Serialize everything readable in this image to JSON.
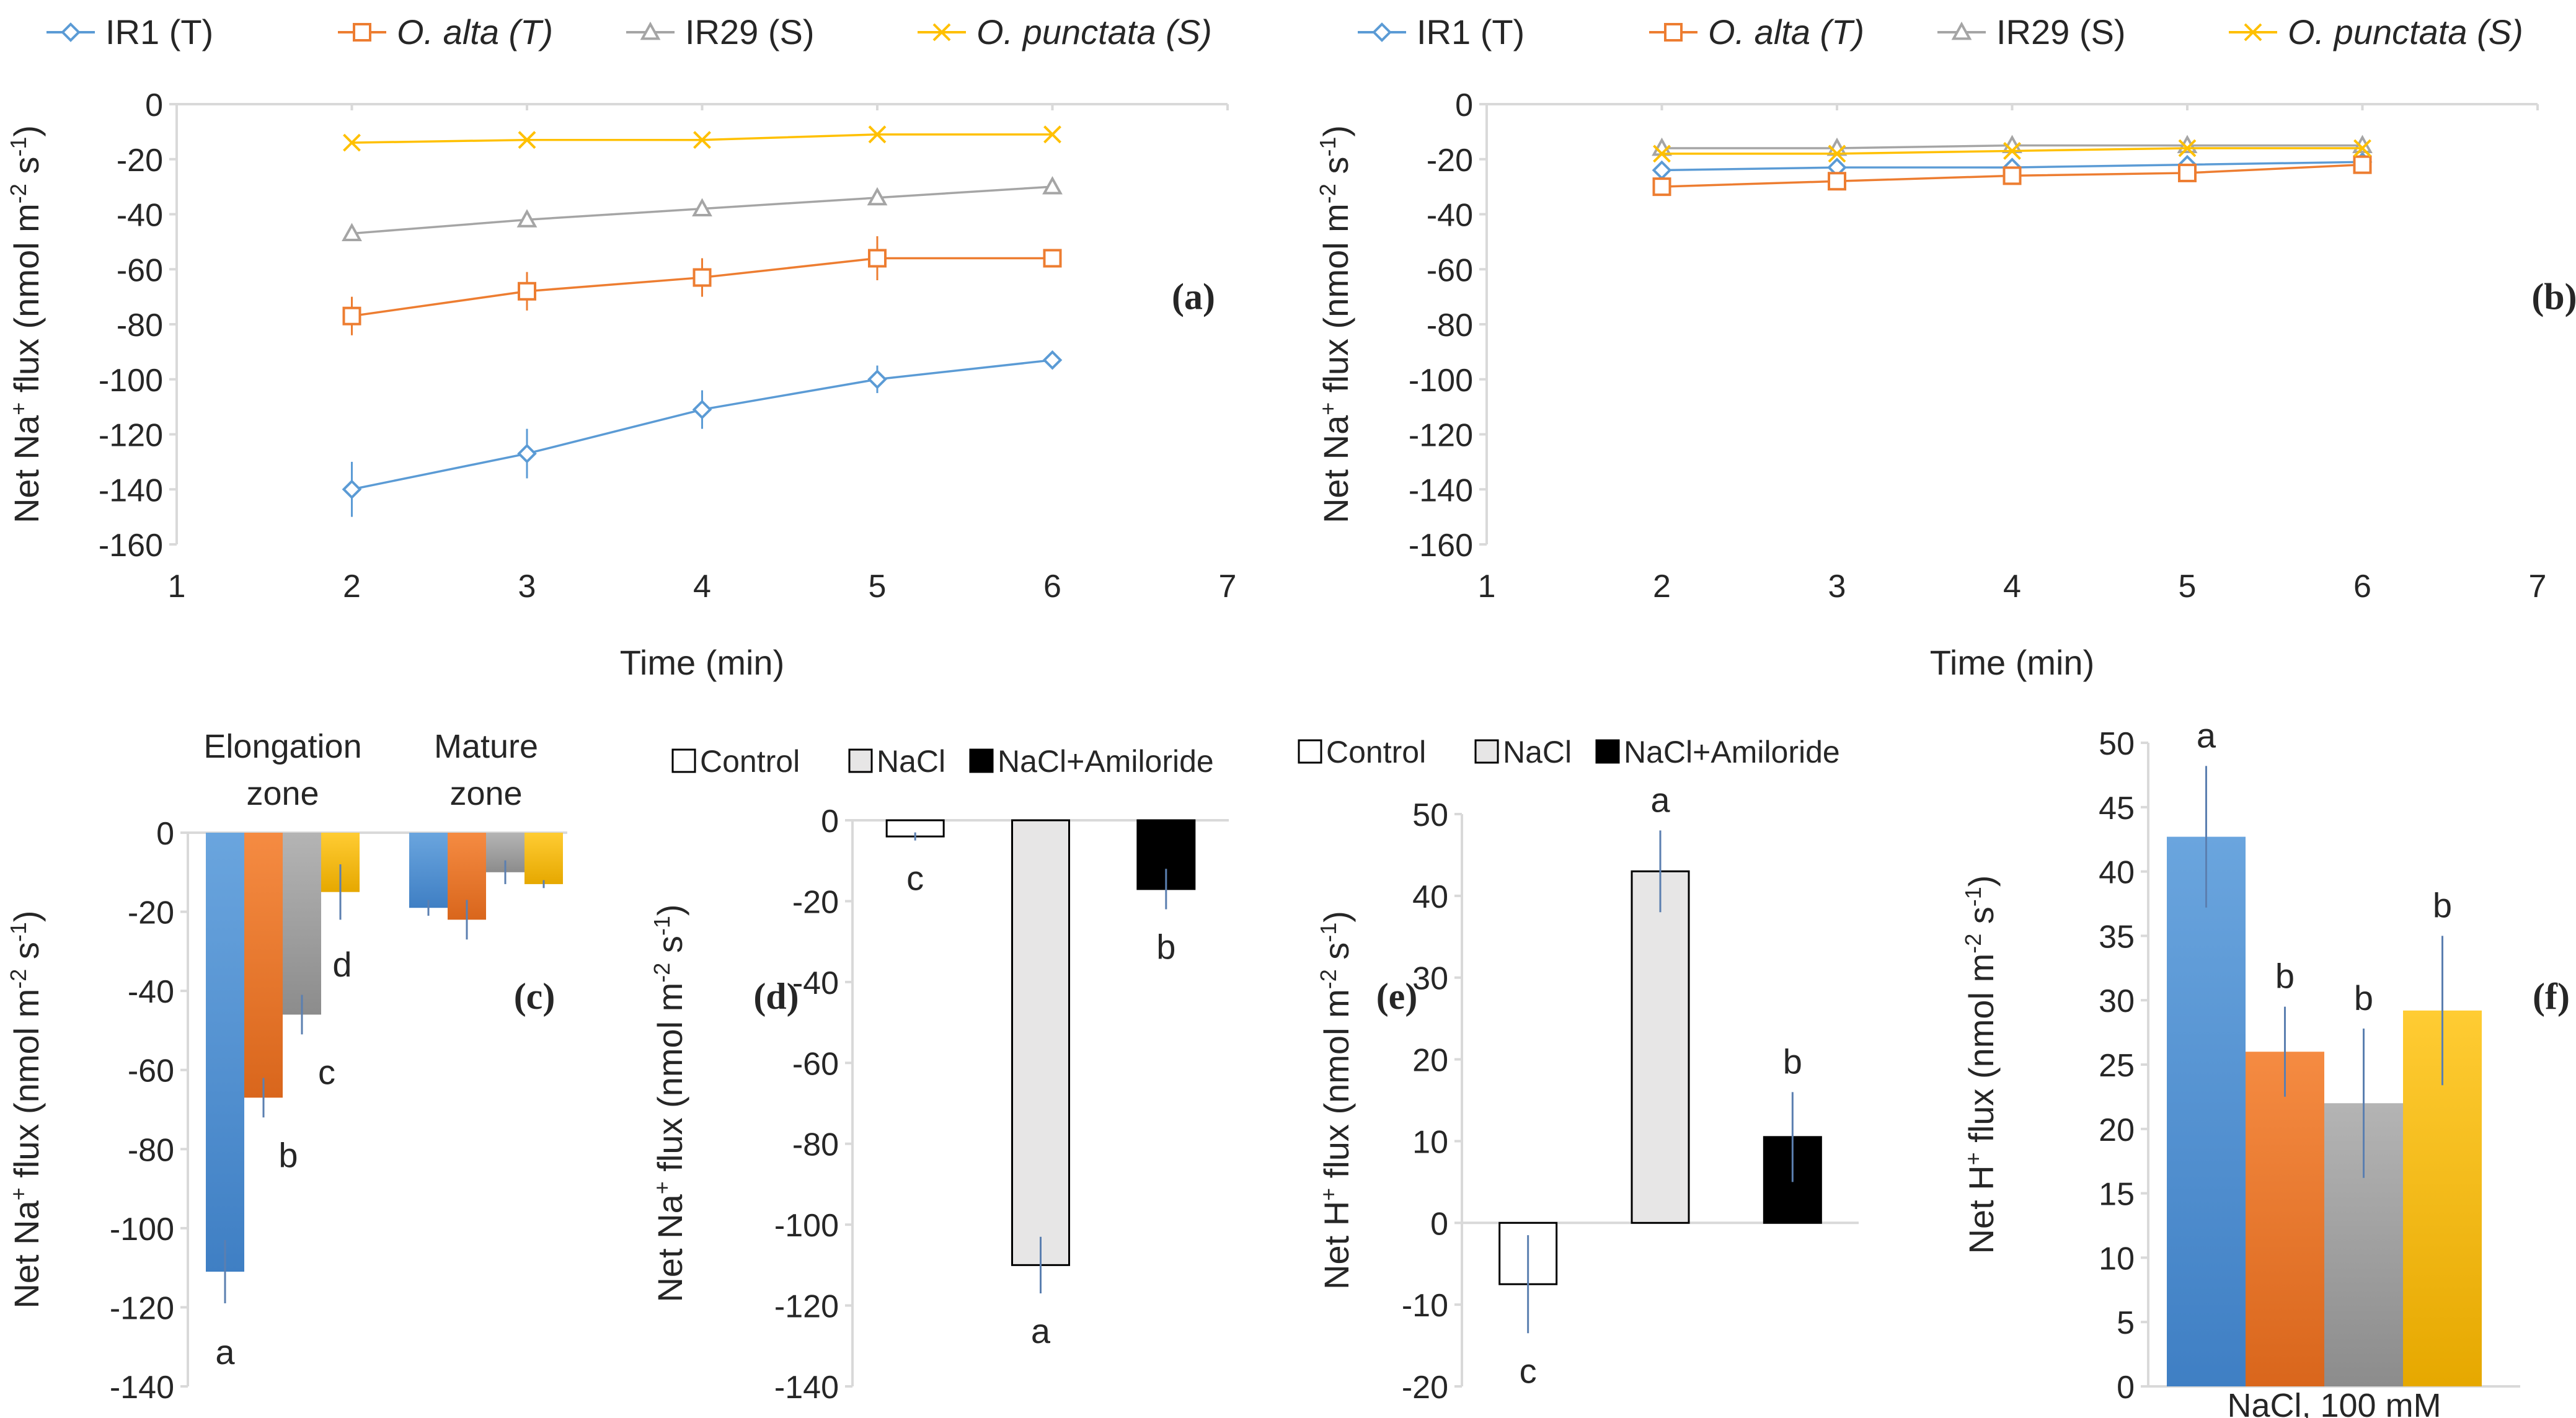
{
  "chart_data": [
    {
      "panel": "(a)",
      "type": "line",
      "xlabel": "Time (min)",
      "ylabel": "Net Na+ flux (nmol m-2 s-1)",
      "ylabel_parts": [
        "Net Na",
        "+",
        " flux (nmol m",
        "-2",
        " s",
        "-1",
        ")"
      ],
      "xlim": [
        1,
        7
      ],
      "ylim": [
        -160,
        0
      ],
      "xticks": [
        1,
        2,
        3,
        4,
        5,
        6,
        7
      ],
      "yticks": [
        0,
        -20,
        -40,
        -60,
        -80,
        -100,
        -120,
        -140,
        -160
      ],
      "x": [
        2,
        3,
        4,
        5,
        6
      ],
      "legend": [
        {
          "name": "IR1 (T)",
          "italic": false
        },
        {
          "name": "O. alta (T)",
          "italic": true
        },
        {
          "name": "IR29 (S)",
          "italic": false
        },
        {
          "name": "O. punctata (S)",
          "italic": true
        }
      ],
      "series": [
        {
          "name": "IR1 (T)",
          "color": "#5b9bd5",
          "marker": "diamond",
          "values": [
            -140,
            -127,
            -111,
            -100,
            -93
          ],
          "errors": [
            10,
            9,
            7,
            5,
            0
          ]
        },
        {
          "name": "O. alta (T)",
          "color": "#ed7d31",
          "marker": "square",
          "values": [
            -77,
            -68,
            -63,
            -56,
            -56
          ],
          "errors": [
            7,
            7,
            7,
            8,
            0
          ]
        },
        {
          "name": "IR29 (S)",
          "color": "#a5a5a5",
          "marker": "triangle",
          "values": [
            -47,
            -42,
            -38,
            -34,
            -30
          ],
          "errors": [
            0,
            0,
            0,
            0,
            0
          ]
        },
        {
          "name": "O. punctata (S)",
          "color": "#ffc000",
          "marker": "x",
          "values": [
            -14,
            -13,
            -13,
            -11,
            -11
          ],
          "errors": [
            0,
            0,
            0,
            0,
            0
          ]
        }
      ]
    },
    {
      "panel": "(b)",
      "type": "line",
      "xlabel": "Time (min)",
      "ylabel": "Net Na+ flux (nmol m-2 s-1)",
      "ylabel_parts": [
        "Net Na",
        "+",
        " flux (nmol m",
        "-2",
        " s",
        "-1",
        ")"
      ],
      "xlim": [
        1,
        7
      ],
      "ylim": [
        -160,
        0
      ],
      "xticks": [
        1,
        2,
        3,
        4,
        5,
        6,
        7
      ],
      "yticks": [
        0,
        -20,
        -40,
        -60,
        -80,
        -100,
        -120,
        -140,
        -160
      ],
      "x": [
        2,
        3,
        4,
        5,
        6
      ],
      "legend": [
        {
          "name": "IR1 (T)",
          "italic": false
        },
        {
          "name": "O. alta (T)",
          "italic": true
        },
        {
          "name": "IR29 (S)",
          "italic": false
        },
        {
          "name": "O. punctata (S)",
          "italic": true
        }
      ],
      "series": [
        {
          "name": "IR1 (T)",
          "color": "#5b9bd5",
          "marker": "diamond",
          "values": [
            -24,
            -23,
            -23,
            -22,
            -21
          ],
          "errors": [
            0,
            0,
            0,
            0,
            0
          ]
        },
        {
          "name": "O. alta (T)",
          "color": "#ed7d31",
          "marker": "square",
          "values": [
            -30,
            -28,
            -26,
            -25,
            -22
          ],
          "errors": [
            0,
            0,
            0,
            0,
            0
          ]
        },
        {
          "name": "IR29 (S)",
          "color": "#a5a5a5",
          "marker": "triangle",
          "values": [
            -16,
            -16,
            -15,
            -15,
            -15
          ],
          "errors": [
            0,
            0,
            0,
            0,
            0
          ]
        },
        {
          "name": "O. punctata (S)",
          "color": "#ffc000",
          "marker": "x",
          "values": [
            -18,
            -18,
            -17,
            -16,
            -16
          ],
          "errors": [
            0,
            0,
            0,
            0,
            0
          ]
        }
      ]
    },
    {
      "panel": "(c)",
      "type": "bar",
      "ylabel": "Net Na+ flux (nmol m-2 s-1)",
      "ylabel_parts": [
        "Net Na",
        "+",
        " flux (nmol m",
        "-2",
        " s",
        "-1",
        ")"
      ],
      "ylim": [
        -140,
        0
      ],
      "yticks": [
        0,
        -20,
        -40,
        -60,
        -80,
        -100,
        -120,
        -140
      ],
      "categories": [
        [
          "Elongation",
          "zone"
        ],
        [
          "Mature",
          "zone"
        ]
      ],
      "series": [
        {
          "name": "IR1 (T)",
          "color": "#5b9bd5",
          "values": [
            -111,
            -19
          ],
          "errors": [
            8,
            2
          ],
          "letters": [
            "a",
            ""
          ]
        },
        {
          "name": "O. alta (T)",
          "color": "#ed7d31",
          "values": [
            -67,
            -22
          ],
          "errors": [
            5,
            5
          ],
          "letters": [
            "b",
            ""
          ]
        },
        {
          "name": "IR29 (S)",
          "color": "#a5a5a5",
          "values": [
            -46,
            -10
          ],
          "errors": [
            5,
            3
          ],
          "letters": [
            "c",
            ""
          ]
        },
        {
          "name": "O. punctata (S)",
          "color": "#ffc000",
          "values": [
            -15,
            -13
          ],
          "errors": [
            7,
            1
          ],
          "letters": [
            "d",
            ""
          ]
        }
      ]
    },
    {
      "panel": "(d)",
      "type": "bar",
      "ylabel": "Net Na+ flux (nmol m-2 s-1)",
      "ylabel_parts": [
        "Net Na",
        "+",
        " flux (nmol m",
        "-2",
        " s",
        "-1",
        ")"
      ],
      "ylim": [
        -140,
        0
      ],
      "yticks": [
        0,
        -20,
        -40,
        -60,
        -80,
        -100,
        -120,
        -140
      ],
      "legend": [
        "Control",
        "NaCl",
        "NaCl+Amiloride"
      ],
      "categories": [
        "Control",
        "NaCl",
        "NaCl+Amiloride"
      ],
      "colors": [
        "#ffffff",
        "#e7e6e6",
        "#000000"
      ],
      "values": [
        -4,
        -110,
        -17
      ],
      "errors": [
        1,
        7,
        5
      ],
      "letters": [
        "c",
        "a",
        "b"
      ]
    },
    {
      "panel": "(e)",
      "type": "bar",
      "ylabel": "Net H+ flux (nmol m-2 s-1)",
      "ylabel_parts": [
        "Net H",
        "+",
        " flux (nmol m",
        "-2",
        " s",
        "-1",
        ")"
      ],
      "ylim": [
        -20,
        50
      ],
      "yticks": [
        50,
        40,
        30,
        20,
        10,
        0,
        -10,
        -20
      ],
      "legend": [
        "Control",
        "NaCl",
        "NaCl+Amiloride"
      ],
      "categories": [
        "Control",
        "NaCl",
        "NaCl+Amiloride"
      ],
      "colors": [
        "#ffffff",
        "#e7e6e6",
        "#000000"
      ],
      "values": [
        -7.5,
        43,
        10.5
      ],
      "errors": [
        6,
        5,
        5.5
      ],
      "letters": [
        "c",
        "a",
        "b"
      ]
    },
    {
      "panel": "(f)",
      "type": "bar",
      "ylabel": "Net H+ flux (nmol m-2 s-1)",
      "ylabel_parts": [
        "Net H",
        "+",
        " flux (nmol m",
        "-2",
        " s",
        "-1",
        ")"
      ],
      "xlabel": "NaCl, 100 mM",
      "ylim": [
        0,
        50
      ],
      "yticks": [
        50,
        45,
        40,
        35,
        30,
        25,
        20,
        15,
        10,
        5,
        0
      ],
      "series": [
        {
          "name": "IR1 (T)",
          "color": "#5b9bd5",
          "value": 42.7,
          "error": 5.5,
          "letter": "a"
        },
        {
          "name": "O. alta (T)",
          "color": "#ed7d31",
          "value": 26,
          "error": 3.5,
          "letter": "b"
        },
        {
          "name": "IR29 (S)",
          "color": "#a5a5a5",
          "value": 22,
          "error": 5.8,
          "letter": "b"
        },
        {
          "name": "O. punctata (S)",
          "color": "#ffc000",
          "value": 29.2,
          "error": 5.8,
          "letter": "b"
        }
      ]
    }
  ]
}
